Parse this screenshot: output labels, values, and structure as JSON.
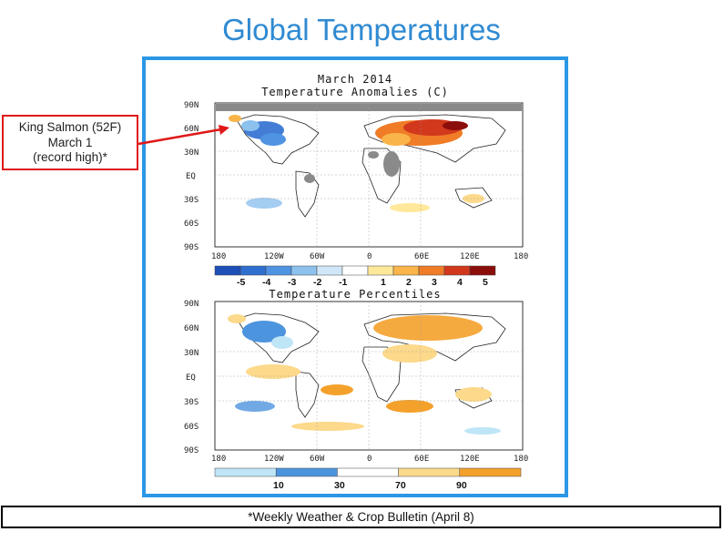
{
  "slide": {
    "title": "Global Temperatures",
    "footer": "*Weekly Weather & Crop Bulletin (April 8)"
  },
  "callout": {
    "lines": [
      "King Salmon (52F)",
      "March 1",
      "(record high)*"
    ],
    "border_color": "#e01818"
  },
  "frame_color": "#2b97e6",
  "anomaly_map": {
    "title_line1": "March 2014",
    "title_line2": "Temperature Anomalies (C)",
    "lat_labels": [
      "90N",
      "60N",
      "30N",
      "EQ",
      "30S",
      "60S",
      "90S"
    ],
    "lon_labels": [
      "180",
      "120W",
      "60W",
      "0",
      "60E",
      "120E",
      "180"
    ],
    "colorbar_labels": [
      "-5",
      "-4",
      "-3",
      "-2",
      "-1",
      "1",
      "2",
      "3",
      "4",
      "5"
    ],
    "colorbar_colors": [
      "#1c4fb8",
      "#2f6fd0",
      "#4f93e3",
      "#8dc1ee",
      "#cfe7f8",
      "#ffffff",
      "#ffe89a",
      "#f9b54a",
      "#f07c27",
      "#d2381c",
      "#8c0e0b"
    ]
  },
  "percentile_map": {
    "title": "Temperature Percentiles",
    "lat_labels": [
      "90N",
      "60N",
      "30N",
      "EQ",
      "30S",
      "60S",
      "90S"
    ],
    "lon_labels": [
      "180",
      "120W",
      "60W",
      "0",
      "60E",
      "120E",
      "180"
    ],
    "colorbar_labels": [
      "10",
      "30",
      "70",
      "90"
    ],
    "colorbar_colors": [
      "#bfe6f6",
      "#4d94de",
      "#ffffff",
      "#fcd98b",
      "#f4a12b"
    ]
  }
}
